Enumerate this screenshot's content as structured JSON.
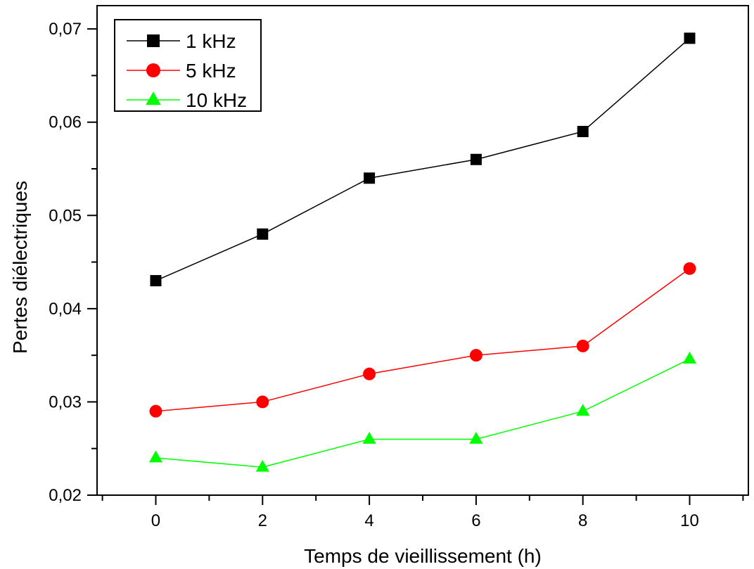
{
  "chart_data": {
    "type": "line",
    "xlabel": "Temps de vieillissement (h)",
    "ylabel": "Pertes diélectriques",
    "xlim": [
      -1.1,
      11.1
    ],
    "ylim": [
      0.02,
      0.0725
    ],
    "x_ticks": [
      0,
      2,
      4,
      6,
      8,
      10
    ],
    "x_tick_labels": [
      "0",
      "2",
      "4",
      "6",
      "8",
      "10"
    ],
    "y_ticks": [
      0.02,
      0.03,
      0.04,
      0.05,
      0.06,
      0.07
    ],
    "y_tick_labels": [
      "0,02",
      "0,03",
      "0,04",
      "0,05",
      "0,06",
      "0,07"
    ],
    "grid": false,
    "legend_position": "top-left",
    "x": [
      0,
      2,
      4,
      6,
      8,
      10
    ],
    "series": [
      {
        "name": "1 kHz",
        "marker": "square",
        "color": "#000000",
        "line_color": "#000000",
        "values": [
          0.043,
          0.048,
          0.054,
          0.056,
          0.059,
          0.069
        ]
      },
      {
        "name": "5 kHz",
        "marker": "circle",
        "color": "#ff0000",
        "line_color": "#ff0000",
        "values": [
          0.029,
          0.03,
          0.033,
          0.035,
          0.036,
          0.0443
        ]
      },
      {
        "name": "10 kHz",
        "marker": "triangle",
        "color": "#00ff00",
        "line_color": "#00ff00",
        "values": [
          0.024,
          0.023,
          0.026,
          0.026,
          0.029,
          0.0346
        ]
      }
    ]
  }
}
